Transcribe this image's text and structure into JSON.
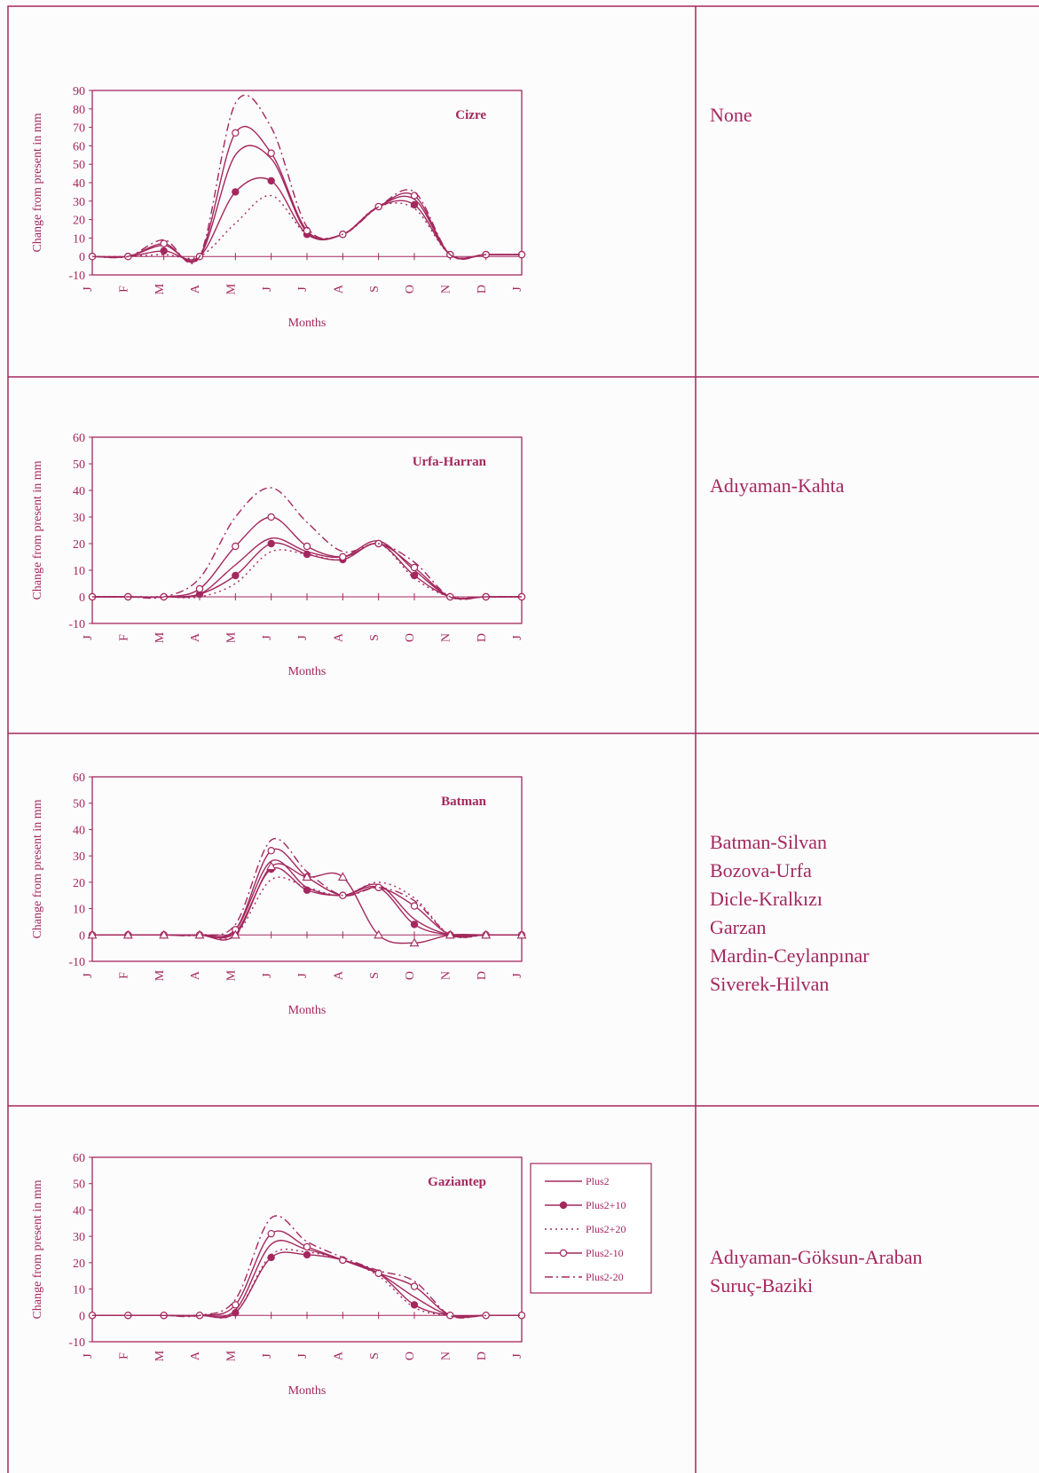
{
  "colors": {
    "ink": "#a3285e",
    "background": "#fdfcfc"
  },
  "legend": [
    {
      "name": "Plus2",
      "dash": "none",
      "marker": "none"
    },
    {
      "name": "Plus2+10",
      "dash": "none",
      "marker": "filled"
    },
    {
      "name": "Plus2+20",
      "dash": "dot",
      "marker": "none"
    },
    {
      "name": "Plus2-10",
      "dash": "none",
      "marker": "open"
    },
    {
      "name": "Plus2-20",
      "dash": "dashdot",
      "marker": "none"
    }
  ],
  "rows": [
    {
      "regions": [
        "None"
      ]
    },
    {
      "regions": [
        "Adıyaman-Kahta"
      ]
    },
    {
      "regions": [
        "Batman-Silvan",
        "Bozova-Urfa",
        "Dicle-Kralkızı",
        "Garzan",
        "Mardin-Ceylanpınar",
        "Siverek-Hilvan"
      ]
    },
    {
      "regions": [
        "Adıyaman-Göksun-Araban",
        "Suruç-Baziki"
      ]
    }
  ],
  "chart_data": [
    {
      "type": "line",
      "title": "Cizre",
      "xlabel": "Months",
      "ylabel": "Change from present in mm",
      "ylim": [
        -10,
        90
      ],
      "yticks": [
        -10,
        0,
        10,
        20,
        30,
        40,
        50,
        60,
        70,
        80,
        90
      ],
      "categories": [
        "J",
        "F",
        "M",
        "A",
        "M",
        "J",
        "J",
        "A",
        "S",
        "O",
        "N",
        "D",
        "J"
      ],
      "series": [
        {
          "name": "Plus2",
          "values": [
            0,
            0,
            6,
            0,
            55,
            53,
            13,
            12,
            27,
            31,
            1,
            1,
            1
          ]
        },
        {
          "name": "Plus2+10",
          "values": [
            0,
            0,
            3,
            0,
            35,
            41,
            12,
            12,
            27,
            28,
            1,
            1,
            1
          ]
        },
        {
          "name": "Plus2+20",
          "values": [
            0,
            0,
            1,
            0,
            18,
            33,
            12,
            12,
            27,
            26,
            1,
            1,
            1
          ]
        },
        {
          "name": "Plus2-10",
          "values": [
            0,
            0,
            7,
            0,
            67,
            56,
            14,
            12,
            27,
            33,
            1,
            1,
            1
          ]
        },
        {
          "name": "Plus2-20",
          "values": [
            0,
            0,
            9,
            0,
            83,
            70,
            16,
            12,
            27,
            35,
            1,
            1,
            1
          ]
        }
      ]
    },
    {
      "type": "line",
      "title": "Urfa-Harran",
      "xlabel": "Months",
      "ylabel": "Change from present in mm",
      "ylim": [
        -10,
        60
      ],
      "yticks": [
        -10,
        0,
        10,
        20,
        30,
        40,
        50,
        60
      ],
      "categories": [
        "J",
        "F",
        "M",
        "A",
        "M",
        "J",
        "J",
        "A",
        "S",
        "O",
        "N",
        "D",
        "J"
      ],
      "series": [
        {
          "name": "Plus2",
          "values": [
            0,
            0,
            0,
            1,
            12,
            22,
            17,
            15,
            21,
            10,
            0,
            0,
            0
          ]
        },
        {
          "name": "Plus2+10",
          "values": [
            0,
            0,
            0,
            1,
            8,
            20,
            16,
            14,
            20,
            8,
            0,
            0,
            0
          ]
        },
        {
          "name": "Plus2+20",
          "values": [
            0,
            0,
            0,
            0,
            5,
            17,
            16,
            14,
            20,
            7,
            0,
            0,
            0
          ]
        },
        {
          "name": "Plus2-10",
          "values": [
            0,
            0,
            0,
            3,
            19,
            30,
            19,
            15,
            20,
            11,
            0,
            0,
            0
          ]
        },
        {
          "name": "Plus2-20",
          "values": [
            0,
            0,
            0,
            7,
            30,
            41,
            28,
            17,
            20,
            13,
            0,
            0,
            0
          ]
        }
      ]
    },
    {
      "type": "line",
      "title": "Batman",
      "xlabel": "Months",
      "ylabel": "Change from present  in mm",
      "ylim": [
        -10,
        60
      ],
      "yticks": [
        -10,
        0,
        10,
        20,
        30,
        40,
        50,
        60
      ],
      "categories": [
        "J",
        "F",
        "M",
        "A",
        "M",
        "J",
        "J",
        "A",
        "S",
        "O",
        "N",
        "D",
        "J"
      ],
      "series": [
        {
          "name": "Plus2",
          "values": [
            0,
            0,
            0,
            0,
            2,
            28,
            18,
            15,
            19,
            6,
            0,
            0,
            0
          ]
        },
        {
          "name": "Plus2+10",
          "values": [
            0,
            0,
            0,
            0,
            1,
            25,
            17,
            15,
            18,
            4,
            0,
            0,
            0
          ]
        },
        {
          "name": "Plus2+20",
          "values": [
            0,
            0,
            0,
            0,
            0,
            21,
            18,
            15,
            20,
            14,
            0,
            0,
            0
          ]
        },
        {
          "name": "Plus2-10",
          "values": [
            0,
            0,
            0,
            0,
            2,
            32,
            22,
            15,
            18,
            11,
            0,
            0,
            0
          ]
        },
        {
          "name": "Plus2-20",
          "values": [
            0,
            0,
            0,
            0,
            4,
            36,
            24,
            15,
            18,
            13,
            0,
            0,
            0
          ]
        },
        {
          "name": "",
          "marker": "triangle",
          "values": [
            0,
            0,
            0,
            0,
            0,
            26,
            22,
            22,
            0,
            -3,
            0,
            0,
            0
          ]
        }
      ]
    },
    {
      "type": "line",
      "title": "Gaziantep",
      "xlabel": "Months",
      "ylabel": "Change from present in mm",
      "ylim": [
        -10,
        60
      ],
      "yticks": [
        -10,
        0,
        10,
        20,
        30,
        40,
        50,
        60
      ],
      "categories": [
        "J",
        "F",
        "M",
        "A",
        "M",
        "J",
        "J",
        "A",
        "S",
        "O",
        "N",
        "D",
        "J"
      ],
      "series": [
        {
          "name": "Plus2",
          "values": [
            0,
            0,
            0,
            0,
            2,
            27,
            25,
            21,
            16,
            7,
            0,
            0,
            0
          ]
        },
        {
          "name": "Plus2+10",
          "values": [
            0,
            0,
            0,
            0,
            1,
            22,
            23,
            21,
            16,
            4,
            0,
            0,
            0
          ]
        },
        {
          "name": "Plus2+20",
          "values": [
            0,
            0,
            0,
            0,
            1,
            23,
            24,
            21,
            15,
            3,
            0,
            0,
            0
          ]
        },
        {
          "name": "Plus2-10",
          "values": [
            0,
            0,
            0,
            0,
            4,
            31,
            26,
            21,
            16,
            11,
            0,
            0,
            0
          ]
        },
        {
          "name": "Plus2-20",
          "values": [
            0,
            0,
            0,
            0,
            6,
            37,
            28,
            22,
            17,
            13,
            0,
            0,
            0
          ]
        }
      ]
    }
  ]
}
